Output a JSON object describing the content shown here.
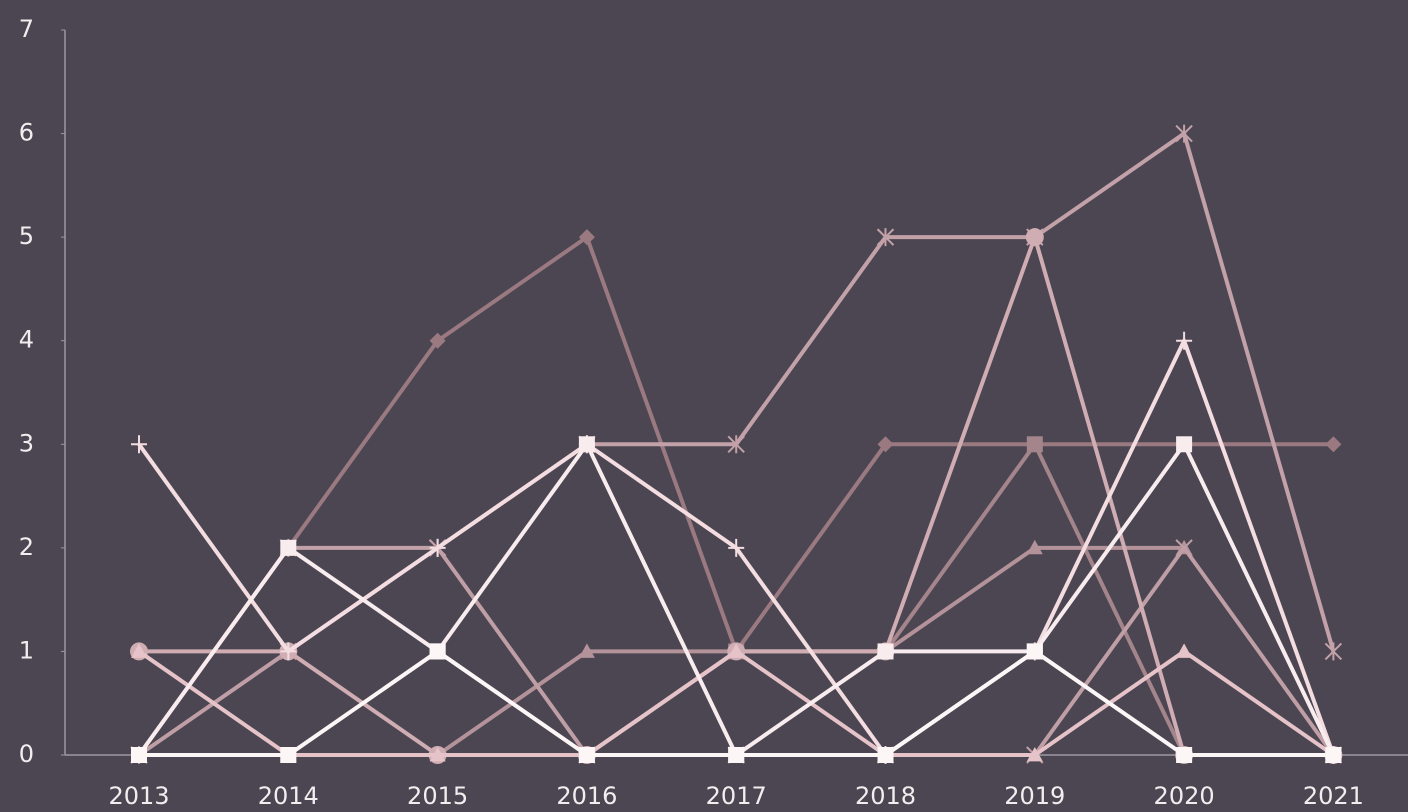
{
  "chart_data": {
    "type": "line",
    "categories": [
      "2013",
      "2014",
      "2015",
      "2016",
      "2017",
      "2018",
      "2019",
      "2020",
      "2021"
    ],
    "ylim": [
      0,
      7
    ],
    "yticks": [
      0,
      1,
      2,
      3,
      4,
      5,
      6,
      7
    ],
    "series": [
      {
        "color": "#9a7a80",
        "marker": "diamond",
        "values": [
          0,
          2,
          4,
          5,
          1,
          3,
          3,
          3,
          3
        ]
      },
      {
        "color": "#a4858b",
        "marker": "square",
        "values": [
          0,
          0,
          1,
          0,
          1,
          1,
          3,
          0,
          0
        ]
      },
      {
        "color": "#b39399",
        "marker": "triangle",
        "values": [
          0,
          0,
          0,
          1,
          1,
          1,
          2,
          2,
          null
        ]
      },
      {
        "color": "#bf9fa5",
        "marker": "x",
        "values": [
          0,
          1,
          2,
          0,
          0,
          0,
          0,
          2,
          0
        ]
      },
      {
        "color": "#c3a1a8",
        "marker": "asterisk",
        "values": [
          0,
          2,
          2,
          3,
          3,
          5,
          5,
          6,
          1
        ]
      },
      {
        "color": "#cfadb3",
        "marker": "circle",
        "values": [
          1,
          1,
          0,
          0,
          1,
          1,
          5,
          0,
          0
        ]
      },
      {
        "color": "#e6c3c8",
        "marker": "triangle",
        "values": [
          1,
          0,
          0,
          0,
          1,
          0,
          0,
          1,
          0
        ]
      },
      {
        "color": "#f3dde0",
        "marker": "plus",
        "values": [
          3,
          1,
          2,
          3,
          2,
          0,
          1,
          4,
          0
        ]
      },
      {
        "color": "#f8ecee",
        "marker": "square",
        "values": [
          0,
          2,
          1,
          3,
          0,
          1,
          1,
          3,
          0
        ]
      },
      {
        "color": "#fdf6f7",
        "marker": "square",
        "values": [
          0,
          0,
          1,
          0,
          0,
          0,
          1,
          0,
          0
        ]
      }
    ]
  }
}
